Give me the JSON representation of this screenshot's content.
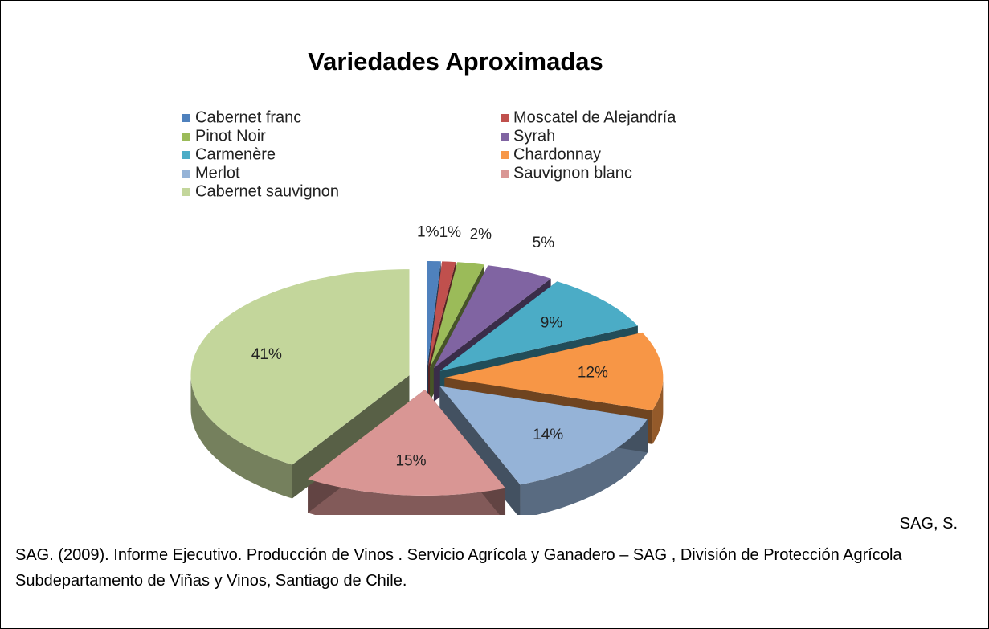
{
  "chart_data": {
    "type": "pie3d",
    "title": "Variedades Aproximadas",
    "categories": [
      "Cabernet franc",
      "Moscatel de Alejandría",
      "Pinot Noir",
      "Syrah",
      "Carmenère",
      "Chardonnay",
      "Merlot",
      "Sauvignon blanc",
      "Cabernet sauvignon"
    ],
    "values": [
      1,
      1,
      2,
      5,
      9,
      12,
      14,
      15,
      41
    ],
    "value_labels": [
      "1%",
      "1%",
      "2%",
      "5%",
      "9%",
      "12%",
      "14%",
      "15%",
      "41%"
    ],
    "colors": [
      "#4f81bd",
      "#c0504d",
      "#9bbb59",
      "#8064a2",
      "#4bacc6",
      "#f79646",
      "#95b3d7",
      "#d99694",
      "#c3d69b"
    ],
    "legend": "top"
  },
  "reference": {
    "author": "SAG,  S.",
    "text": "SAG. (2009). Informe Ejecutivo. Producción de Vinos . Servicio Agrícola y Ganadero – SAG , División de Protección Agrícola Subdepartamento de Viñas y Vinos, Santiago de Chile."
  }
}
